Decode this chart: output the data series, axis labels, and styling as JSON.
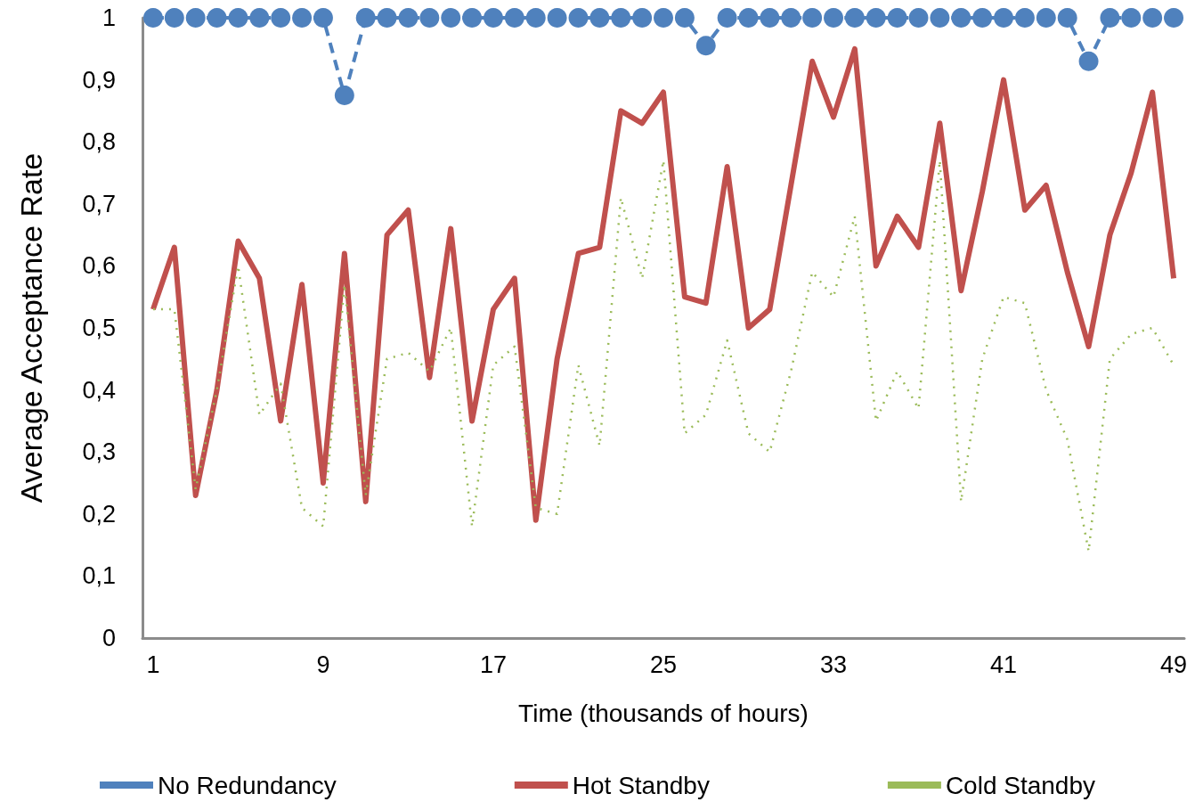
{
  "chart_data": {
    "type": "line",
    "xlabel": "Time (thousands of hours)",
    "ylabel": "Average Acceptance Rate",
    "categories": [
      "1",
      null,
      null,
      null,
      null,
      null,
      null,
      null,
      "9",
      null,
      null,
      null,
      null,
      null,
      null,
      null,
      "17",
      null,
      null,
      null,
      null,
      null,
      null,
      null,
      "25",
      null,
      null,
      null,
      null,
      null,
      null,
      null,
      "33",
      null,
      null,
      null,
      null,
      null,
      null,
      null,
      "41",
      null,
      null,
      null,
      null,
      null,
      null,
      null,
      "49"
    ],
    "ylim": [
      0,
      1
    ],
    "yticks": [
      0,
      {
        "value": 0.1,
        "label": "0,1"
      },
      {
        "value": 0.2,
        "label": "0,2"
      },
      {
        "value": 0.3,
        "label": "0,3"
      },
      {
        "value": 0.4,
        "label": "0,4"
      },
      {
        "value": 0.5,
        "label": "0,5"
      },
      {
        "value": 0.6,
        "label": "0,6"
      },
      {
        "value": 0.7,
        "label": "0,7"
      },
      {
        "value": 0.8,
        "label": "0,8"
      },
      {
        "value": 0.9,
        "label": "0,9"
      },
      1
    ],
    "grid": false,
    "legend": "bottom",
    "series": [
      {
        "name": "No Redundancy",
        "color": "#4f81bd",
        "marker": "circle",
        "line_style": "dashed",
        "values": [
          1,
          1,
          1,
          1,
          1,
          1,
          1,
          1,
          1,
          0.875,
          1,
          1,
          1,
          1,
          1,
          1,
          1,
          1,
          1,
          1,
          1,
          1,
          1,
          1,
          1,
          1,
          0.955,
          1,
          1,
          1,
          1,
          1,
          1,
          1,
          1,
          1,
          1,
          1,
          1,
          1,
          1,
          1,
          1,
          1,
          0.93,
          1,
          1,
          1,
          1
        ]
      },
      {
        "name": "Hot Standby",
        "color": "#c0504d",
        "marker": "none",
        "line_style": "solid",
        "values": [
          0.53,
          0.63,
          0.23,
          0.4,
          0.64,
          0.58,
          0.35,
          0.57,
          0.25,
          0.62,
          0.22,
          0.65,
          0.69,
          0.42,
          0.66,
          0.35,
          0.53,
          0.58,
          0.19,
          0.45,
          0.62,
          0.63,
          0.85,
          0.83,
          0.88,
          0.55,
          0.54,
          0.76,
          0.5,
          0.53,
          0.73,
          0.93,
          0.84,
          0.95,
          0.6,
          0.68,
          0.63,
          0.83,
          0.56,
          0.72,
          0.9,
          0.69,
          0.73,
          0.59,
          0.47,
          0.65,
          0.75,
          0.88,
          0.58
        ]
      },
      {
        "name": "Cold Standby",
        "color": "#9bbb59",
        "marker": "none",
        "line_style": "dotted",
        "values": [
          0.53,
          0.53,
          0.24,
          0.4,
          0.6,
          0.36,
          0.41,
          0.21,
          0.18,
          0.57,
          0.23,
          0.45,
          0.46,
          0.43,
          0.5,
          0.18,
          0.44,
          0.47,
          0.21,
          0.2,
          0.44,
          0.31,
          0.71,
          0.58,
          0.77,
          0.33,
          0.36,
          0.48,
          0.33,
          0.3,
          0.43,
          0.59,
          0.55,
          0.68,
          0.35,
          0.43,
          0.37,
          0.77,
          0.22,
          0.45,
          0.55,
          0.54,
          0.4,
          0.32,
          0.14,
          0.45,
          0.49,
          0.5,
          0.44
        ]
      }
    ]
  }
}
